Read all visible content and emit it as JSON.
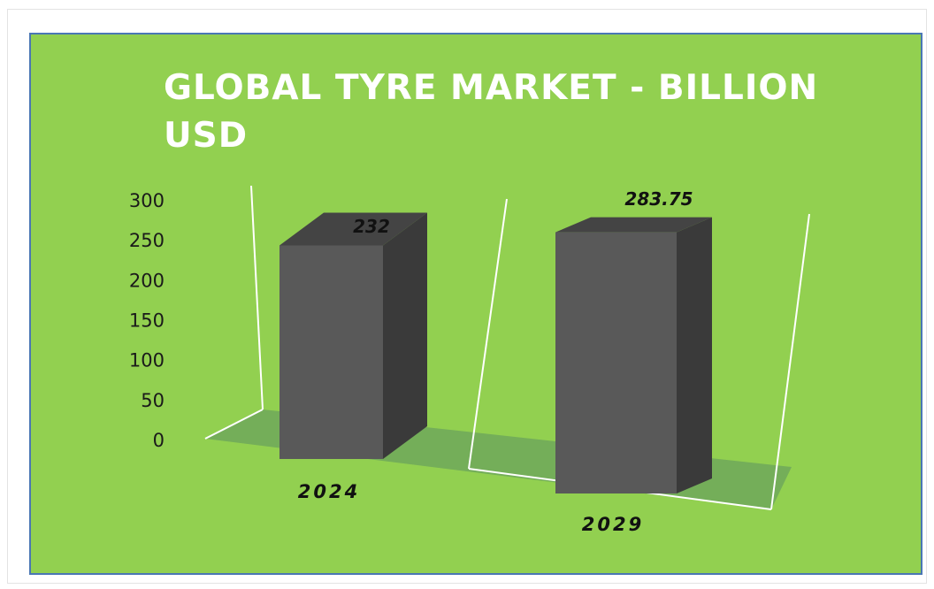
{
  "colors": {
    "panel_background": "#92d050",
    "panel_border": "#4a77b4",
    "title_color": "#ffffff",
    "bar_front": "#595959",
    "bar_side": "#3a3a3a",
    "bar_top": "#444444",
    "floor": "#6fa85a",
    "wall_lines": "#ffffff"
  },
  "chart_data": {
    "type": "bar",
    "style": "3d-column",
    "title": "GLOBAL TYRE MARKET - BILLION USD",
    "categories": [
      "2024",
      "2029"
    ],
    "values": [
      232,
      283.75
    ],
    "data_labels": [
      "232",
      "283.75"
    ],
    "y_ticks": [
      "0",
      "50",
      "100",
      "150",
      "200",
      "250",
      "300"
    ],
    "ylim": [
      0,
      300
    ],
    "xlabel": "",
    "ylabel": "",
    "grid": false,
    "legend": "none"
  }
}
